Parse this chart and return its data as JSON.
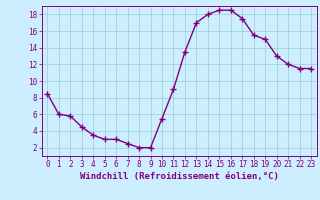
{
  "x": [
    0,
    1,
    2,
    3,
    4,
    5,
    6,
    7,
    8,
    9,
    10,
    11,
    12,
    13,
    14,
    15,
    16,
    17,
    18,
    19,
    20,
    21,
    22,
    23
  ],
  "y": [
    8.5,
    6.0,
    5.8,
    4.5,
    3.5,
    3.0,
    3.0,
    2.5,
    2.0,
    2.0,
    5.5,
    9.0,
    13.5,
    17.0,
    18.0,
    18.5,
    18.5,
    17.5,
    15.5,
    15.0,
    13.0,
    12.0,
    11.5,
    11.5
  ],
  "line_color": "#800080",
  "marker": "+",
  "markersize": 4,
  "linewidth": 1.0,
  "bg_color": "#cceeff",
  "grid_color": "#99cccc",
  "xlabel": "Windchill (Refroidissement éolien,°C)",
  "xlabel_color": "#800080",
  "xlabel_fontsize": 6.5,
  "tick_color": "#800080",
  "tick_fontsize": 5.5,
  "ylim": [
    1,
    19
  ],
  "xlim": [
    -0.5,
    23.5
  ],
  "yticks": [
    2,
    4,
    6,
    8,
    10,
    12,
    14,
    16,
    18
  ],
  "xticks": [
    0,
    1,
    2,
    3,
    4,
    5,
    6,
    7,
    8,
    9,
    10,
    11,
    12,
    13,
    14,
    15,
    16,
    17,
    18,
    19,
    20,
    21,
    22,
    23
  ]
}
